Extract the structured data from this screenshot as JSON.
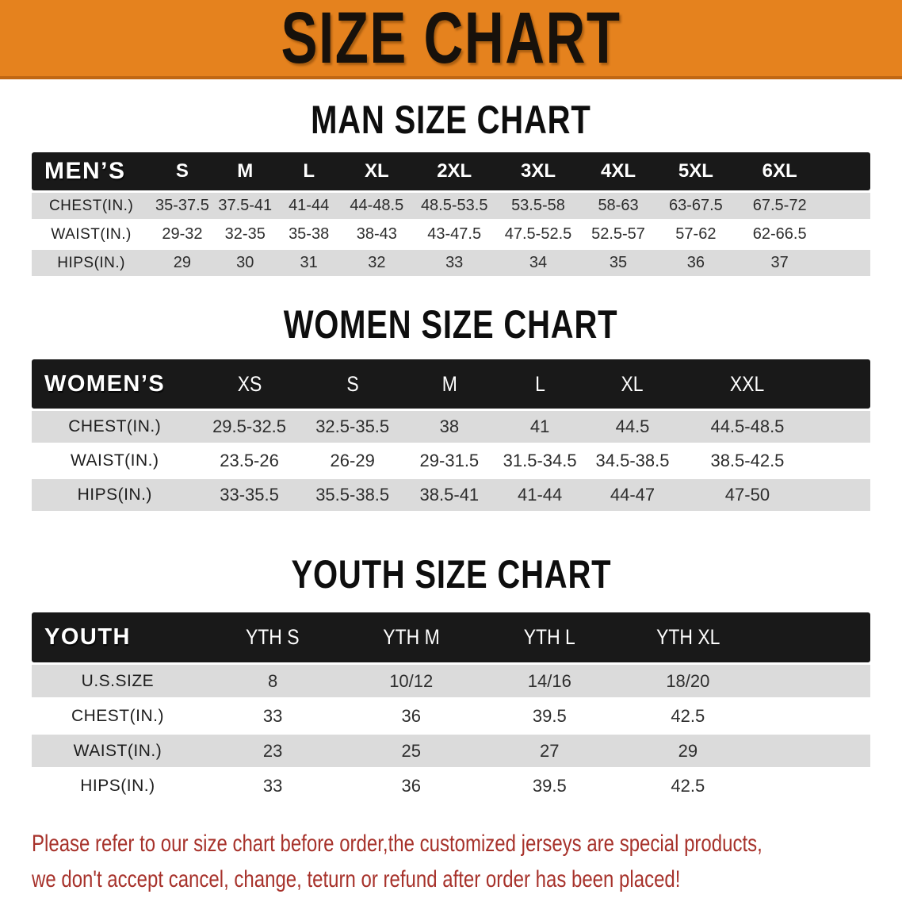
{
  "banner": {
    "title": "SIZE CHART",
    "bg_color": "#E5821E",
    "text_color": "#17110b"
  },
  "chart_data": [
    {
      "type": "table",
      "title": "MAN SIZE CHART",
      "corner": "MEN’S",
      "columns": [
        "S",
        "M",
        "L",
        "XL",
        "2XL",
        "3XL",
        "4XL",
        "5XL",
        "6XL"
      ],
      "rows": [
        {
          "label": "CHEST(IN.)",
          "values": [
            "35-37.5",
            "37.5-41",
            "41-44",
            "44-48.5",
            "48.5-53.5",
            "53.5-58",
            "58-63",
            "63-67.5",
            "67.5-72"
          ]
        },
        {
          "label": "WAIST(IN.)",
          "values": [
            "29-32",
            "32-35",
            "35-38",
            "38-43",
            "43-47.5",
            "47.5-52.5",
            "52.5-57",
            "57-62",
            "62-66.5"
          ]
        },
        {
          "label": "HIPS(IN.)",
          "values": [
            "29",
            "30",
            "31",
            "32",
            "33",
            "34",
            "35",
            "36",
            "37"
          ]
        }
      ]
    },
    {
      "type": "table",
      "title": "WOMEN SIZE CHART",
      "corner": "WOMEN’S",
      "columns": [
        "XS",
        "S",
        "M",
        "L",
        "XL",
        "XXL"
      ],
      "rows": [
        {
          "label": "CHEST(IN.)",
          "values": [
            "29.5-32.5",
            "32.5-35.5",
            "38",
            "41",
            "44.5",
            "44.5-48.5"
          ]
        },
        {
          "label": "WAIST(IN.)",
          "values": [
            "23.5-26",
            "26-29",
            "29-31.5",
            "31.5-34.5",
            "34.5-38.5",
            "38.5-42.5"
          ]
        },
        {
          "label": "HIPS(IN.)",
          "values": [
            "33-35.5",
            "35.5-38.5",
            "38.5-41",
            "41-44",
            "44-47",
            "47-50"
          ]
        }
      ]
    },
    {
      "type": "table",
      "title": "YOUTH SIZE CHART",
      "corner": "YOUTH",
      "columns": [
        "YTH S",
        "YTH M",
        "YTH L",
        "YTH XL"
      ],
      "rows": [
        {
          "label": "U.S.SIZE",
          "values": [
            "8",
            "10/12",
            "14/16",
            "18/20"
          ]
        },
        {
          "label": "CHEST(IN.)",
          "values": [
            "33",
            "36",
            "39.5",
            "42.5"
          ]
        },
        {
          "label": "WAIST(IN.)",
          "values": [
            "23",
            "25",
            "27",
            "29"
          ]
        },
        {
          "label": "HIPS(IN.)",
          "values": [
            "33",
            "36",
            "39.5",
            "42.5"
          ]
        }
      ]
    }
  ],
  "styles": {
    "header_bar_color": "#191919",
    "row_stripe_color": "#DBDBDB",
    "notice_color": "#A7322B"
  },
  "footer": {
    "line1": "Please refer to our size chart before order,the customized jerseys are special products,",
    "line2": "we don't accept cancel, change, teturn or refund after order has been placed!"
  }
}
